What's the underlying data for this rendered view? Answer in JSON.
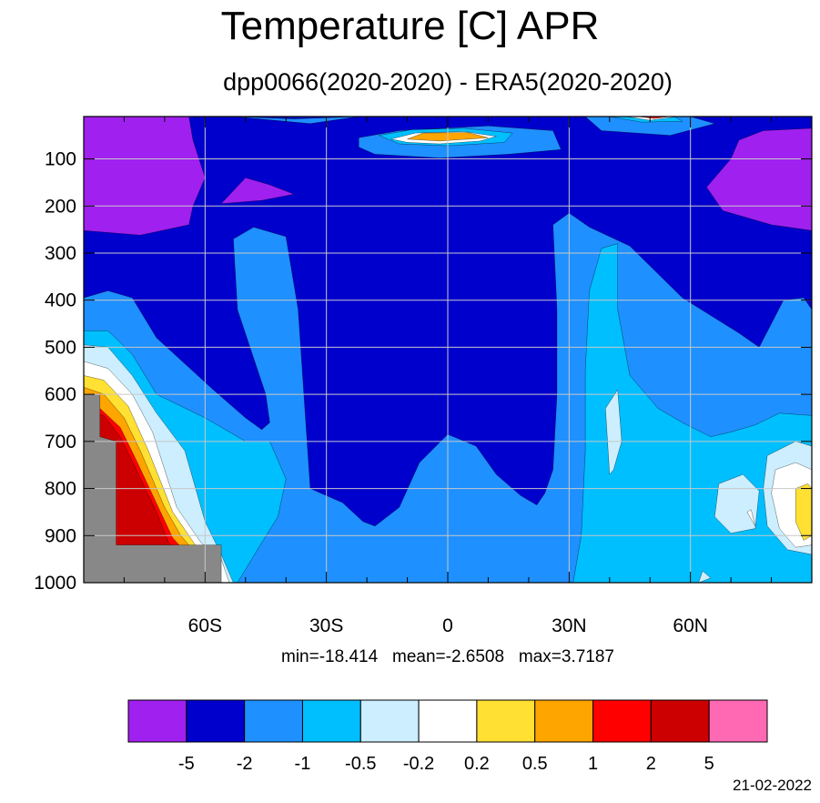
{
  "title": "Temperature [C] APR",
  "subtitle": "dpp0066(2020-2020) - ERA5(2020-2020)",
  "stats": "min=-18.414   mean=-2.6508   max=3.7187",
  "date": "21-02-2022",
  "chart_data": {
    "type": "heatmap",
    "title": "Temperature [C] APR",
    "subtitle": "dpp0066(2020-2020) - ERA5(2020-2020)",
    "x_ticks": [
      {
        "value": -60,
        "label": "60S"
      },
      {
        "value": -30,
        "label": "30S"
      },
      {
        "value": 0,
        "label": "0"
      },
      {
        "value": 30,
        "label": "30N"
      },
      {
        "value": 60,
        "label": "60N"
      }
    ],
    "y_ticks": [
      {
        "value": 100,
        "label": "100"
      },
      {
        "value": 200,
        "label": "200"
      },
      {
        "value": 300,
        "label": "300"
      },
      {
        "value": 400,
        "label": "400"
      },
      {
        "value": 500,
        "label": "500"
      },
      {
        "value": 600,
        "label": "600"
      },
      {
        "value": 700,
        "label": "700"
      },
      {
        "value": 800,
        "label": "800"
      },
      {
        "value": 900,
        "label": "900"
      },
      {
        "value": 1000,
        "label": "1000"
      }
    ],
    "xlim": [
      -90,
      90
    ],
    "ylim": [
      1000,
      10
    ],
    "grid": true,
    "colorbar": {
      "levels": [
        "-5",
        "-2",
        "-1",
        "-0.5",
        "-0.2",
        "0.2",
        "0.5",
        "1",
        "2",
        "5"
      ],
      "colors": [
        "#a020f0",
        "#0000cd",
        "#1e90ff",
        "#00bfff",
        "#cceeff",
        "#ffffff",
        "#ffe033",
        "#ffa500",
        "#ff0000",
        "#cc0000",
        "#ff69b4"
      ]
    },
    "regions": [
      {
        "fill": "#a020f0",
        "pts": [
          [
            -90,
            10
          ],
          [
            -64,
            10
          ],
          [
            -63,
            60
          ],
          [
            -60,
            140
          ],
          [
            -63,
            200
          ],
          [
            -64,
            240
          ],
          [
            -76,
            262
          ],
          [
            -90,
            252
          ]
        ]
      },
      {
        "fill": "#a020f0",
        "pts": [
          [
            -56,
            195
          ],
          [
            -50,
            140
          ],
          [
            -44,
            155
          ],
          [
            -38,
            175
          ],
          [
            -46,
            188
          ]
        ]
      },
      {
        "fill": "#a020f0",
        "pts": [
          [
            72,
            60
          ],
          [
            78,
            40
          ],
          [
            90,
            35
          ],
          [
            90,
            252
          ],
          [
            80,
            240
          ],
          [
            68,
            210
          ],
          [
            64,
            160
          ],
          [
            70,
            100
          ]
        ]
      },
      {
        "fill": "#1e90ff",
        "pts": [
          [
            -53,
            10
          ],
          [
            -38,
            15
          ],
          [
            -22,
            10
          ],
          [
            -34,
            25
          ]
        ]
      },
      {
        "fill": "#1e90ff",
        "pts": [
          [
            34,
            10
          ],
          [
            60,
            10
          ],
          [
            66,
            25
          ],
          [
            55,
            50
          ],
          [
            38,
            40
          ]
        ]
      },
      {
        "fill": "#1e90ff",
        "pts": [
          [
            -22,
            55
          ],
          [
            -12,
            40
          ],
          [
            10,
            30
          ],
          [
            26,
            40
          ],
          [
            28,
            80
          ],
          [
            15,
            90
          ],
          [
            -2,
            98
          ],
          [
            -18,
            90
          ],
          [
            -22,
            75
          ]
        ]
      },
      {
        "fill": "#1e90ff",
        "pts": [
          [
            -90,
            395
          ],
          [
            -84,
            380
          ],
          [
            -78,
            395
          ],
          [
            -72,
            480
          ],
          [
            -58,
            590
          ],
          [
            -50,
            650
          ],
          [
            -46,
            675
          ],
          [
            -44,
            660
          ],
          [
            -45,
            600
          ],
          [
            -52,
            420
          ],
          [
            -53,
            270
          ],
          [
            -48,
            245
          ],
          [
            -40,
            265
          ],
          [
            -37,
            420
          ],
          [
            -34,
            800
          ],
          [
            -26,
            830
          ],
          [
            -21,
            870
          ],
          [
            -18,
            880
          ],
          [
            -12,
            840
          ],
          [
            -7,
            745
          ],
          [
            0,
            685
          ],
          [
            7,
            710
          ],
          [
            12,
            770
          ],
          [
            18,
            815
          ],
          [
            22,
            835
          ],
          [
            24,
            810
          ],
          [
            26,
            760
          ],
          [
            27,
            600
          ],
          [
            27,
            420
          ],
          [
            26,
            240
          ],
          [
            30,
            215
          ],
          [
            35,
            245
          ],
          [
            45,
            285
          ],
          [
            58,
            395
          ],
          [
            72,
            470
          ],
          [
            77,
            500
          ],
          [
            83,
            400
          ],
          [
            88,
            395
          ],
          [
            90,
            420
          ],
          [
            90,
            1000
          ],
          [
            -90,
            1000
          ]
        ]
      },
      {
        "fill": "#00bfff",
        "pts": [
          [
            -90,
            465
          ],
          [
            -84,
            465
          ],
          [
            -78,
            515
          ],
          [
            -72,
            600
          ],
          [
            -60,
            650
          ],
          [
            -50,
            700
          ],
          [
            -44,
            700
          ],
          [
            -40,
            780
          ],
          [
            -42,
            860
          ],
          [
            -46,
            915
          ],
          [
            -52,
            1000
          ],
          [
            -90,
            1000
          ]
        ]
      },
      {
        "fill": "#00bfff",
        "pts": [
          [
            31,
            1000
          ],
          [
            33,
            900
          ],
          [
            34,
            720
          ],
          [
            34,
            550
          ],
          [
            35,
            380
          ],
          [
            38,
            290
          ],
          [
            42,
            280
          ],
          [
            42,
            420
          ],
          [
            45,
            560
          ],
          [
            52,
            630
          ],
          [
            58,
            660
          ],
          [
            65,
            690
          ],
          [
            70,
            680
          ],
          [
            76,
            665
          ],
          [
            82,
            640
          ],
          [
            90,
            645
          ],
          [
            90,
            1000
          ]
        ]
      },
      {
        "fill": "#cceeff",
        "pts": [
          [
            -90,
            495
          ],
          [
            -84,
            500
          ],
          [
            -78,
            560
          ],
          [
            -72,
            640
          ],
          [
            -65,
            720
          ],
          [
            -60,
            870
          ],
          [
            -56,
            940
          ],
          [
            -53,
            1000
          ],
          [
            -90,
            1000
          ]
        ]
      },
      {
        "fill": "#cceeff",
        "pts": [
          [
            39,
            630
          ],
          [
            42,
            590
          ],
          [
            43,
            700
          ],
          [
            41,
            760
          ],
          [
            40,
            770
          ]
        ]
      },
      {
        "fill": "#cceeff",
        "pts": [
          [
            67,
            790
          ],
          [
            73,
            770
          ],
          [
            77,
            805
          ],
          [
            76,
            885
          ],
          [
            70,
            895
          ],
          [
            66,
            860
          ]
        ]
      },
      {
        "fill": "#cceeff",
        "pts": [
          [
            79,
            730
          ],
          [
            86,
            700
          ],
          [
            90,
            710
          ],
          [
            90,
            940
          ],
          [
            84,
            930
          ],
          [
            79,
            880
          ],
          [
            78,
            800
          ]
        ]
      },
      {
        "fill": "#cceeff",
        "pts": [
          [
            62,
            1000
          ],
          [
            63,
            975
          ],
          [
            65,
            990
          ]
        ]
      },
      {
        "fill": "#ffffff",
        "pts": [
          [
            -90,
            530
          ],
          [
            -84,
            545
          ],
          [
            -78,
            600
          ],
          [
            -73,
            680
          ],
          [
            -67,
            840
          ],
          [
            -61,
            915
          ],
          [
            -56,
            950
          ],
          [
            -54,
            1000
          ],
          [
            -90,
            1000
          ]
        ]
      },
      {
        "fill": "#ffffff",
        "pts": [
          [
            81,
            760
          ],
          [
            86,
            745
          ],
          [
            90,
            760
          ],
          [
            90,
            920
          ],
          [
            86,
            925
          ],
          [
            82,
            885
          ],
          [
            80,
            810
          ]
        ]
      },
      {
        "fill": "#ffffff",
        "pts": [
          [
            74,
            850
          ],
          [
            75,
            845
          ],
          [
            76,
            880
          ]
        ]
      },
      {
        "fill": "#ffe033",
        "pts": [
          [
            -90,
            560
          ],
          [
            -85,
            570
          ],
          [
            -79,
            625
          ],
          [
            -74,
            720
          ],
          [
            -68,
            850
          ],
          [
            -64,
            900
          ],
          [
            -57,
            990
          ],
          [
            -56,
            1000
          ],
          [
            -90,
            1000
          ]
        ]
      },
      {
        "fill": "#ffe033",
        "pts": [
          [
            86,
            800
          ],
          [
            89,
            790
          ],
          [
            90,
            800
          ],
          [
            90,
            900
          ],
          [
            88,
            910
          ],
          [
            86,
            870
          ]
        ]
      },
      {
        "fill": "#ffa500",
        "pts": [
          [
            -90,
            585
          ],
          [
            -85,
            600
          ],
          [
            -80,
            650
          ],
          [
            -76,
            720
          ],
          [
            -70,
            840
          ],
          [
            -66,
            900
          ],
          [
            -58,
            980
          ],
          [
            -57,
            1000
          ],
          [
            -90,
            1000
          ]
        ]
      },
      {
        "fill": "#ff0000",
        "pts": [
          [
            -90,
            620
          ],
          [
            -86,
            630
          ],
          [
            -81,
            670
          ],
          [
            -77,
            740
          ],
          [
            -71,
            850
          ],
          [
            -68,
            905
          ],
          [
            -59,
            990
          ],
          [
            -58,
            1000
          ],
          [
            -90,
            1000
          ]
        ]
      },
      {
        "fill": "#cc0000",
        "pts": [
          [
            -89,
            640
          ],
          [
            -85,
            645
          ],
          [
            -81,
            690
          ],
          [
            -77,
            760
          ],
          [
            -72,
            850
          ],
          [
            -69,
            915
          ],
          [
            -59,
            1000
          ],
          [
            -89,
            1000
          ]
        ]
      },
      {
        "fill": "#00bfff",
        "pts": [
          [
            -17,
            50
          ],
          [
            -9,
            38
          ],
          [
            4,
            35
          ],
          [
            16,
            45
          ],
          [
            14,
            65
          ],
          [
            0,
            72
          ],
          [
            -12,
            68
          ]
        ]
      },
      {
        "fill": "#ffffff",
        "pts": [
          [
            -14,
            58
          ],
          [
            -8,
            45
          ],
          [
            4,
            42
          ],
          [
            12,
            52
          ],
          [
            8,
            62
          ],
          [
            -2,
            68
          ],
          [
            -10,
            65
          ]
        ]
      },
      {
        "fill": "#ffa500",
        "pts": [
          [
            -10,
            58
          ],
          [
            -6,
            45
          ],
          [
            5,
            44
          ],
          [
            10,
            55
          ],
          [
            -2,
            62
          ]
        ]
      },
      {
        "fill": "#00bfff",
        "pts": [
          [
            40,
            10
          ],
          [
            56,
            10
          ],
          [
            58,
            20
          ],
          [
            48,
            22
          ]
        ]
      },
      {
        "fill": "#ffffff",
        "pts": [
          [
            44,
            10
          ],
          [
            57,
            10
          ],
          [
            50,
            18
          ]
        ]
      },
      {
        "fill": "#ff0000",
        "pts": [
          [
            47,
            10
          ],
          [
            55,
            10
          ],
          [
            51,
            14
          ]
        ]
      },
      {
        "fill": "#888888",
        "pts": [
          [
            -90,
            600
          ],
          [
            -86,
            600
          ],
          [
            -86,
            690
          ],
          [
            -82,
            700
          ],
          [
            -82,
            920
          ],
          [
            -56,
            920
          ],
          [
            -56,
            1000
          ],
          [
            -90,
            1000
          ]
        ]
      }
    ]
  }
}
